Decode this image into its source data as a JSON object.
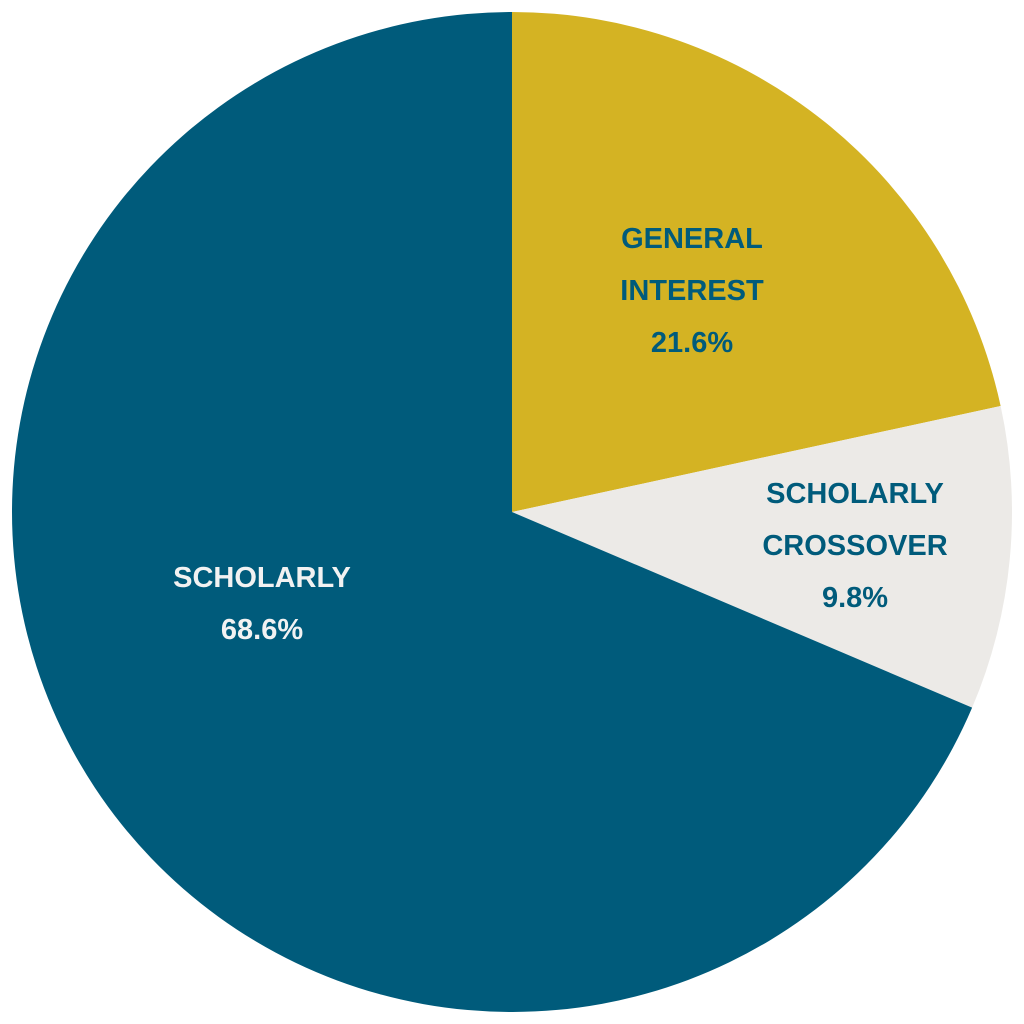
{
  "chart_data": {
    "type": "pie",
    "title": "",
    "categories": [
      "General Interest",
      "Scholarly Crossover",
      "Scholarly"
    ],
    "values": [
      21.6,
      9.8,
      68.6
    ],
    "unit": "%",
    "start_angle_deg": 0,
    "direction": "clockwise",
    "legend": "none (labels on slices)",
    "slices": [
      {
        "name": "general-interest",
        "label_lines": [
          "GENERAL",
          "INTEREST",
          "21.6%"
        ],
        "value": 21.6,
        "color": "#D4B323",
        "label_color": "#005B7B"
      },
      {
        "name": "scholarly-crossover",
        "label_lines": [
          "SCHOLARLY",
          "CROSSOVER",
          "9.8%"
        ],
        "value": 9.8,
        "color": "#ECEAE7",
        "label_color": "#005B7B"
      },
      {
        "name": "scholarly",
        "label_lines": [
          "SCHOLARLY",
          "68.6%"
        ],
        "value": 68.6,
        "color": "#005B7B",
        "label_color": "#F2F2F2"
      }
    ]
  }
}
